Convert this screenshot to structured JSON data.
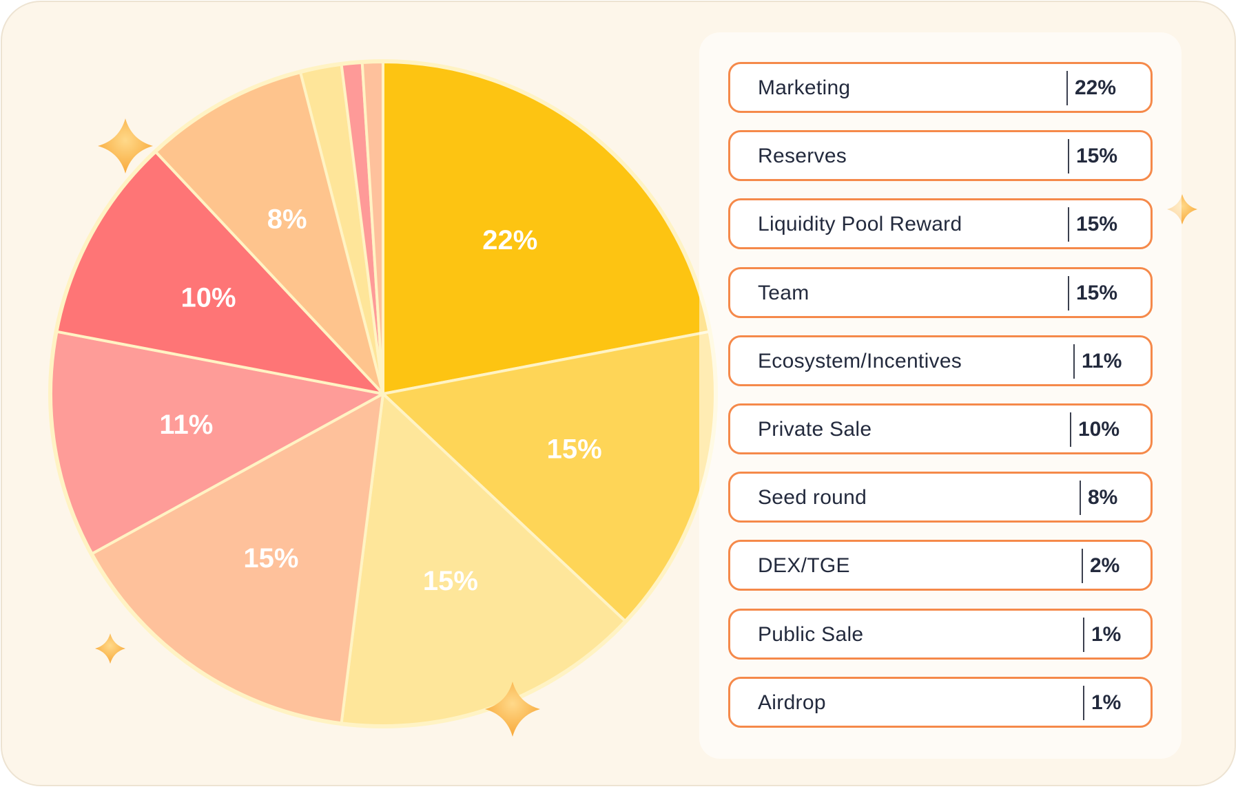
{
  "chart_data": {
    "type": "pie",
    "slices": [
      {
        "label": "Marketing",
        "value": 22,
        "display": "22%",
        "color": "#fdc412"
      },
      {
        "label": "Reserves",
        "value": 15,
        "display": "15%",
        "color": "#fed557"
      },
      {
        "label": "Liquidity Pool Reward",
        "value": 15,
        "display": "15%",
        "color": "#fee69a"
      },
      {
        "label": "Team",
        "value": 15,
        "display": "15%",
        "color": "#fec19b"
      },
      {
        "label": "Ecosystem/Incentives",
        "value": 11,
        "display": "11%",
        "color": "#fe9c98"
      },
      {
        "label": "Private Sale",
        "value": 10,
        "display": "10%",
        "color": "#fe7576"
      },
      {
        "label": "Seed round",
        "value": 8,
        "display": "8%",
        "color": "#fec48d"
      },
      {
        "label": "DEX/TGE",
        "value": 2,
        "display": "2%",
        "color": "#fee599"
      },
      {
        "label": "Public Sale",
        "value": 1,
        "display": "1%",
        "color": "#fe9a98"
      },
      {
        "label": "Airdrop",
        "value": 1,
        "display": "1%",
        "color": "#fec19c"
      }
    ],
    "legend": [
      {
        "label": "Marketing",
        "value": "22%"
      },
      {
        "label": "Reserves",
        "value": "15%"
      },
      {
        "label": "Liquidity Pool Reward",
        "value": "15%"
      },
      {
        "label": "Team",
        "value": "15%"
      },
      {
        "label": "Ecosystem/Incentives",
        "value": "11%"
      },
      {
        "label": "Private Sale",
        "value": "10%"
      },
      {
        "label": "Seed round",
        "value": "8%"
      },
      {
        "label": "DEX/TGE",
        "value": "2%"
      },
      {
        "label": "Public Sale",
        "value": "1%"
      },
      {
        "label": "Airdrop",
        "value": "1%"
      }
    ],
    "legend_position": "right",
    "colors": {
      "background": "#fdf6ea",
      "legend_border": "#f5894a",
      "slice_stroke": "#fff3c4",
      "sparkle": "#fbb040"
    }
  }
}
